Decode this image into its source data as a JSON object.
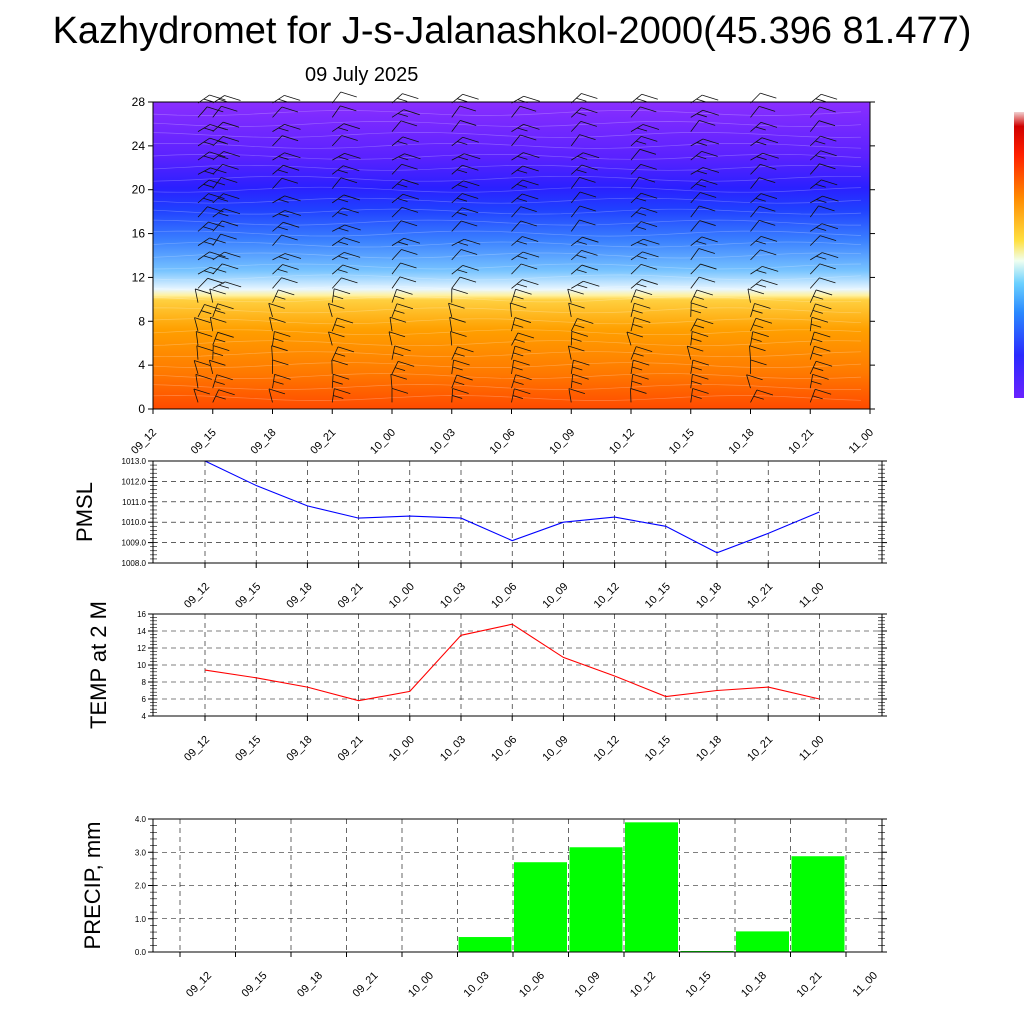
{
  "title": "Kazhydromet for J-s-Jalanashkol-2000(45.396 81.477)",
  "date": "09 July 2025",
  "time_labels": [
    "09_12",
    "09_15",
    "09_18",
    "09_21",
    "10_00",
    "10_03",
    "10_06",
    "10_09",
    "10_12",
    "10_15",
    "10_18",
    "10_21",
    "11_00"
  ],
  "colors": {
    "pmsl_line": "#0000ff",
    "temp_line": "#ff0000",
    "precip_bar": "#00ff00",
    "grid": "#000000"
  },
  "chart_data": [
    {
      "type": "heatmap",
      "name": "cross-section",
      "x": [
        "09_12",
        "09_15",
        "09_18",
        "09_21",
        "10_00",
        "10_03",
        "10_06",
        "10_09",
        "10_12",
        "10_15",
        "10_18",
        "10_21",
        "11_00"
      ],
      "yticks": [
        0,
        4,
        8,
        12,
        16,
        20,
        24,
        28
      ],
      "ylim": [
        0,
        28
      ],
      "grid": false,
      "colorbar": [
        "#ff3c00",
        "#ff8a00",
        "#ffb000",
        "#ffe86a",
        "#d8f0ff",
        "#6ab8ff",
        "#2a6aff",
        "#1a2aff",
        "#4a20ff",
        "#8a2cff"
      ]
    },
    {
      "type": "line",
      "ylabel": "PMSL",
      "x": [
        "09_12",
        "09_15",
        "09_18",
        "09_21",
        "10_00",
        "10_03",
        "10_06",
        "10_09",
        "10_12",
        "10_15",
        "10_18",
        "10_21",
        "11_00"
      ],
      "values": [
        1013.0,
        1011.8,
        1010.8,
        1010.2,
        1010.3,
        1010.2,
        1009.1,
        1010.0,
        1010.25,
        1009.8,
        1008.5,
        1009.45,
        1010.5
      ],
      "ylim": [
        1008.0,
        1013.0
      ],
      "yticks": [
        "1008.0",
        "1009.0",
        "1010.0",
        "1011.0",
        "1012.0",
        "1013.0"
      ],
      "grid": true
    },
    {
      "type": "line",
      "ylabel": "TEMP at 2 M",
      "x": [
        "09_12",
        "09_15",
        "09_18",
        "09_21",
        "10_00",
        "10_03",
        "10_06",
        "10_09",
        "10_12",
        "10_15",
        "10_18",
        "10_21",
        "11_00"
      ],
      "values": [
        9.4,
        8.5,
        7.4,
        5.8,
        6.9,
        13.5,
        14.8,
        10.9,
        8.7,
        6.3,
        7.0,
        7.4,
        6.0
      ],
      "ylim": [
        4,
        16
      ],
      "yticks": [
        "4",
        "6",
        "8",
        "10",
        "12",
        "14",
        "16"
      ],
      "grid": true
    },
    {
      "type": "bar",
      "ylabel": "PRECIP, mm",
      "x": [
        "09_12",
        "09_15",
        "09_18",
        "09_21",
        "10_00",
        "10_03",
        "10_06",
        "10_09",
        "10_12",
        "10_15",
        "10_18",
        "10_21",
        "11_00"
      ],
      "values": [
        0,
        0,
        0,
        0,
        0,
        0,
        0.45,
        2.7,
        3.15,
        3.9,
        0.03,
        0.62,
        2.88
      ],
      "ylim": [
        0,
        4
      ],
      "yticks": [
        "0.0",
        "1.0",
        "2.0",
        "3.0",
        "4.0"
      ],
      "grid": true
    }
  ]
}
